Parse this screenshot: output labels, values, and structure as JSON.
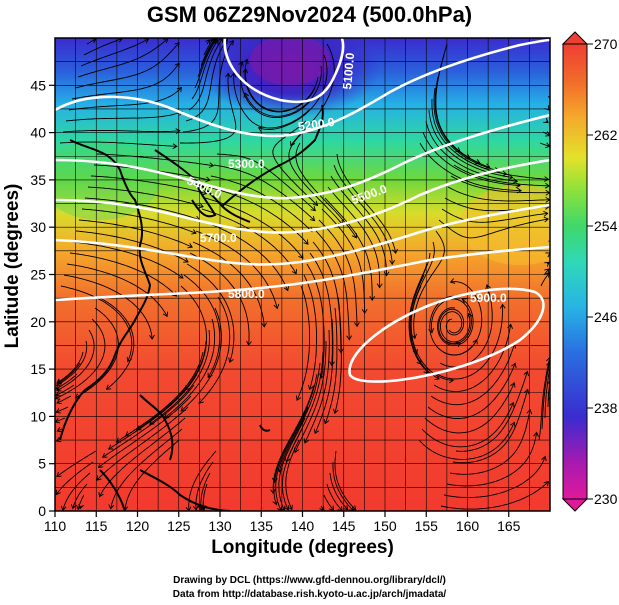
{
  "title": "GSM 06Z29Nov2024 (500.0hPa)",
  "axes": {
    "xlabel": "Longitude (degrees)",
    "ylabel": "Latitude  (degrees)",
    "x_ticks": [
      "110",
      "115",
      "120",
      "125",
      "130",
      "135",
      "140",
      "145",
      "150",
      "155",
      "160",
      "165"
    ],
    "y_ticks": [
      "0",
      "5",
      "10",
      "15",
      "20",
      "25",
      "30",
      "35",
      "40",
      "45"
    ],
    "xlim": [
      110,
      170
    ],
    "ylim": [
      0,
      50
    ]
  },
  "colorbar": {
    "tick_labels": [
      "270",
      "262",
      "254",
      "246",
      "238",
      "230"
    ],
    "range": [
      230,
      270
    ],
    "colors": [
      "#e0199b",
      "#7a17b8",
      "#3a2ccf",
      "#2a6ee0",
      "#27b3e6",
      "#2fd8b8",
      "#3fd86a",
      "#8ee23a",
      "#e3e22b",
      "#f5a82b",
      "#f26a2b",
      "#ee3f33"
    ]
  },
  "contours": {
    "labels": [
      "5100.0",
      "5200.0",
      "5300.0",
      "5400.0",
      "5500.0",
      "5700.0",
      "5800.0",
      "5900.0"
    ]
  },
  "credits": {
    "line1": "Drawing by DCL (https://www.gfd-dennou.org/library/dcl/)",
    "line2": "Data from http://database.rish.kyoto-u.ac.jp/arch/jmadata/"
  }
}
